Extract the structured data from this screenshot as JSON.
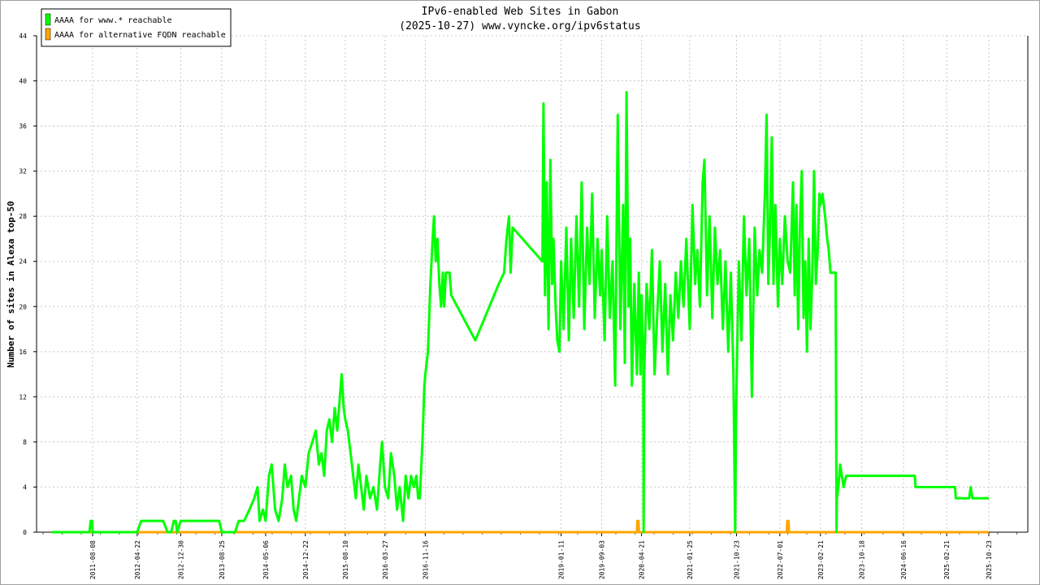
{
  "chart_data": {
    "type": "line",
    "title": "IPv6-enabled Web Sites in Gabon",
    "subtitle": "(2025-10-27) www.vyncke.org/ipv6status",
    "ylabel": "Number of sites in Alexa top-50",
    "xlabel": "",
    "ylim": [
      0,
      44
    ],
    "yticks": [
      0,
      4,
      8,
      12,
      16,
      20,
      24,
      28,
      32,
      36,
      40,
      44
    ],
    "xticks": [
      "2011-08-08",
      "2012-04-22",
      "2012-12-30",
      "2013-08-25",
      "2014-05-06",
      "2014-12-22",
      "2015-08-10",
      "2016-03-27",
      "2016-11-16",
      "2019-01-11",
      "2019-09-03",
      "2020-04-21",
      "2021-01-25",
      "2021-10-23",
      "2022-07-01",
      "2023-02-21",
      "2023-10-18",
      "2024-06-16",
      "2025-02-21",
      "2025-10-23"
    ],
    "grid": true,
    "legend_position": "top-left",
    "series": [
      {
        "name": "AAAA for www.* reachable",
        "color": "#00ff00",
        "points": [
          [
            "2010-12-15",
            0
          ],
          [
            "2011-07-20",
            0
          ],
          [
            "2011-07-28",
            1
          ],
          [
            "2011-08-05",
            1
          ],
          [
            "2011-08-08",
            0
          ],
          [
            "2012-04-01",
            0
          ],
          [
            "2012-04-22",
            0
          ],
          [
            "2012-05-15",
            1
          ],
          [
            "2012-09-20",
            1
          ],
          [
            "2012-10-15",
            0
          ],
          [
            "2012-11-05",
            0
          ],
          [
            "2012-11-20",
            1
          ],
          [
            "2012-12-01",
            1
          ],
          [
            "2012-12-10",
            0
          ],
          [
            "2012-12-30",
            1
          ],
          [
            "2013-08-10",
            1
          ],
          [
            "2013-08-25",
            0
          ],
          [
            "2013-11-10",
            0
          ],
          [
            "2013-12-01",
            1
          ],
          [
            "2014-01-01",
            1
          ],
          [
            "2014-02-01",
            2
          ],
          [
            "2014-03-01",
            3
          ],
          [
            "2014-03-20",
            4
          ],
          [
            "2014-04-01",
            1
          ],
          [
            "2014-04-20",
            2
          ],
          [
            "2014-05-06",
            1
          ],
          [
            "2014-05-25",
            5
          ],
          [
            "2014-06-10",
            6
          ],
          [
            "2014-06-30",
            2
          ],
          [
            "2014-07-20",
            1
          ],
          [
            "2014-08-10",
            3
          ],
          [
            "2014-08-25",
            6
          ],
          [
            "2014-09-10",
            4
          ],
          [
            "2014-09-30",
            5
          ],
          [
            "2014-10-15",
            2
          ],
          [
            "2014-10-30",
            1
          ],
          [
            "2014-11-15",
            3
          ],
          [
            "2014-12-01",
            5
          ],
          [
            "2014-12-22",
            4
          ],
          [
            "2015-01-10",
            7
          ],
          [
            "2015-02-01",
            8
          ],
          [
            "2015-02-20",
            9
          ],
          [
            "2015-03-10",
            6
          ],
          [
            "2015-03-25",
            7
          ],
          [
            "2015-04-10",
            5
          ],
          [
            "2015-04-25",
            9
          ],
          [
            "2015-05-10",
            10
          ],
          [
            "2015-05-25",
            8
          ],
          [
            "2015-06-10",
            11
          ],
          [
            "2015-06-25",
            9
          ],
          [
            "2015-07-10",
            12
          ],
          [
            "2015-07-20",
            14
          ],
          [
            "2015-08-01",
            11
          ],
          [
            "2015-08-10",
            10
          ],
          [
            "2015-08-25",
            9
          ],
          [
            "2015-09-10",
            7
          ],
          [
            "2015-09-25",
            5
          ],
          [
            "2015-10-10",
            3
          ],
          [
            "2015-10-25",
            6
          ],
          [
            "2015-11-10",
            4
          ],
          [
            "2015-11-25",
            2
          ],
          [
            "2015-12-10",
            5
          ],
          [
            "2016-01-01",
            3
          ],
          [
            "2016-01-20",
            4
          ],
          [
            "2016-02-10",
            2
          ],
          [
            "2016-02-28",
            6
          ],
          [
            "2016-03-10",
            8
          ],
          [
            "2016-03-27",
            4
          ],
          [
            "2016-04-15",
            3
          ],
          [
            "2016-05-01",
            7
          ],
          [
            "2016-05-20",
            5
          ],
          [
            "2016-06-05",
            2
          ],
          [
            "2016-06-20",
            4
          ],
          [
            "2016-07-10",
            1
          ],
          [
            "2016-07-25",
            5
          ],
          [
            "2016-08-10",
            3
          ],
          [
            "2016-08-25",
            5
          ],
          [
            "2016-09-10",
            4
          ],
          [
            "2016-09-25",
            5
          ],
          [
            "2016-10-05",
            3
          ],
          [
            "2016-10-15",
            3
          ],
          [
            "2016-10-30",
            8
          ],
          [
            "2016-11-10",
            13
          ],
          [
            "2016-11-16",
            14
          ],
          [
            "2016-12-01",
            16
          ],
          [
            "2016-12-15",
            22
          ],
          [
            "2016-12-28",
            26
          ],
          [
            "2017-01-05",
            28
          ],
          [
            "2017-01-15",
            24
          ],
          [
            "2017-01-25",
            26
          ],
          [
            "2017-02-05",
            22
          ],
          [
            "2017-02-15",
            20
          ],
          [
            "2017-02-25",
            23
          ],
          [
            "2017-03-05",
            20
          ],
          [
            "2017-03-15",
            23
          ],
          [
            "2017-04-05",
            23
          ],
          [
            "2017-04-15",
            21
          ],
          [
            "2017-09-01",
            17
          ],
          [
            "2018-01-15",
            22
          ],
          [
            "2018-02-15",
            23
          ],
          [
            "2018-03-01",
            26
          ],
          [
            "2018-03-15",
            28
          ],
          [
            "2018-03-25",
            23
          ],
          [
            "2018-04-05",
            27
          ],
          [
            "2018-09-25",
            24
          ],
          [
            "2018-10-01",
            38
          ],
          [
            "2018-10-10",
            21
          ],
          [
            "2018-10-20",
            31
          ],
          [
            "2018-10-30",
            18
          ],
          [
            "2018-11-10",
            33
          ],
          [
            "2018-11-20",
            22
          ],
          [
            "2018-11-28",
            26
          ],
          [
            "2018-12-10",
            20
          ],
          [
            "2018-12-20",
            17
          ],
          [
            "2019-01-01",
            16
          ],
          [
            "2019-01-11",
            24
          ],
          [
            "2019-01-25",
            18
          ],
          [
            "2019-02-10",
            27
          ],
          [
            "2019-02-25",
            17
          ],
          [
            "2019-03-10",
            26
          ],
          [
            "2019-03-25",
            19
          ],
          [
            "2019-04-10",
            28
          ],
          [
            "2019-04-25",
            20
          ],
          [
            "2019-05-10",
            31
          ],
          [
            "2019-05-25",
            18
          ],
          [
            "2019-06-10",
            27
          ],
          [
            "2019-06-25",
            22
          ],
          [
            "2019-07-10",
            30
          ],
          [
            "2019-07-25",
            19
          ],
          [
            "2019-08-10",
            26
          ],
          [
            "2019-08-25",
            21
          ],
          [
            "2019-09-03",
            25
          ],
          [
            "2019-09-20",
            17
          ],
          [
            "2019-10-05",
            28
          ],
          [
            "2019-10-20",
            19
          ],
          [
            "2019-11-05",
            24
          ],
          [
            "2019-11-20",
            13
          ],
          [
            "2019-12-05",
            37
          ],
          [
            "2019-12-20",
            18
          ],
          [
            "2020-01-05",
            29
          ],
          [
            "2020-01-15",
            15
          ],
          [
            "2020-01-25",
            39
          ],
          [
            "2020-02-05",
            20
          ],
          [
            "2020-02-15",
            26
          ],
          [
            "2020-02-25",
            13
          ],
          [
            "2020-03-10",
            22
          ],
          [
            "2020-03-25",
            14
          ],
          [
            "2020-04-05",
            23
          ],
          [
            "2020-04-15",
            14
          ],
          [
            "2020-04-21",
            21
          ],
          [
            "2020-05-01",
            15
          ],
          [
            "2020-05-03",
            0
          ],
          [
            "2020-05-06",
            14
          ],
          [
            "2020-05-20",
            22
          ],
          [
            "2020-06-05",
            18
          ],
          [
            "2020-06-20",
            25
          ],
          [
            "2020-07-05",
            14
          ],
          [
            "2020-07-20",
            19
          ],
          [
            "2020-08-05",
            24
          ],
          [
            "2020-08-20",
            16
          ],
          [
            "2020-09-05",
            22
          ],
          [
            "2020-09-20",
            14
          ],
          [
            "2020-10-05",
            21
          ],
          [
            "2020-10-20",
            17
          ],
          [
            "2020-11-05",
            23
          ],
          [
            "2020-11-20",
            19
          ],
          [
            "2020-12-05",
            24
          ],
          [
            "2020-12-20",
            20
          ],
          [
            "2021-01-05",
            26
          ],
          [
            "2021-01-25",
            18
          ],
          [
            "2021-02-10",
            29
          ],
          [
            "2021-02-25",
            22
          ],
          [
            "2021-03-10",
            25
          ],
          [
            "2021-03-25",
            20
          ],
          [
            "2021-04-10",
            31
          ],
          [
            "2021-04-20",
            33
          ],
          [
            "2021-05-05",
            21
          ],
          [
            "2021-05-20",
            28
          ],
          [
            "2021-06-05",
            19
          ],
          [
            "2021-06-20",
            27
          ],
          [
            "2021-07-05",
            22
          ],
          [
            "2021-07-20",
            25
          ],
          [
            "2021-08-05",
            18
          ],
          [
            "2021-08-20",
            24
          ],
          [
            "2021-09-05",
            16
          ],
          [
            "2021-09-20",
            23
          ],
          [
            "2021-10-05",
            14
          ],
          [
            "2021-10-15",
            0
          ],
          [
            "2021-10-20",
            10
          ],
          [
            "2021-10-23",
            13
          ],
          [
            "2021-11-05",
            24
          ],
          [
            "2021-11-20",
            17
          ],
          [
            "2021-12-05",
            28
          ],
          [
            "2021-12-20",
            21
          ],
          [
            "2022-01-05",
            26
          ],
          [
            "2022-01-20",
            12
          ],
          [
            "2022-02-05",
            27
          ],
          [
            "2022-02-20",
            21
          ],
          [
            "2022-03-05",
            25
          ],
          [
            "2022-03-20",
            23
          ],
          [
            "2022-04-05",
            30
          ],
          [
            "2022-04-15",
            37
          ],
          [
            "2022-04-25",
            22
          ],
          [
            "2022-05-05",
            27
          ],
          [
            "2022-05-15",
            35
          ],
          [
            "2022-05-25",
            22
          ],
          [
            "2022-06-05",
            29
          ],
          [
            "2022-06-20",
            20
          ],
          [
            "2022-07-01",
            26
          ],
          [
            "2022-07-15",
            22
          ],
          [
            "2022-07-30",
            28
          ],
          [
            "2022-08-15",
            24
          ],
          [
            "2022-08-30",
            23
          ],
          [
            "2022-09-15",
            31
          ],
          [
            "2022-09-25",
            21
          ],
          [
            "2022-10-05",
            29
          ],
          [
            "2022-10-15",
            18
          ],
          [
            "2022-10-25",
            27
          ],
          [
            "2022-11-05",
            32
          ],
          [
            "2022-11-15",
            19
          ],
          [
            "2022-11-25",
            24
          ],
          [
            "2022-12-05",
            16
          ],
          [
            "2022-12-15",
            26
          ],
          [
            "2022-12-25",
            18
          ],
          [
            "2023-01-05",
            23
          ],
          [
            "2023-01-15",
            32
          ],
          [
            "2023-01-25",
            22
          ],
          [
            "2023-02-05",
            25
          ],
          [
            "2023-02-15",
            30
          ],
          [
            "2023-02-21",
            29
          ],
          [
            "2023-03-05",
            30
          ],
          [
            "2023-03-20",
            28
          ],
          [
            "2023-04-01",
            26
          ],
          [
            "2023-04-10",
            25
          ],
          [
            "2023-04-20",
            23
          ],
          [
            "2023-05-20",
            23
          ],
          [
            "2023-05-25",
            0
          ],
          [
            "2023-05-27",
            3
          ],
          [
            "2023-06-05",
            4
          ],
          [
            "2023-06-15",
            6
          ],
          [
            "2023-06-25",
            5
          ],
          [
            "2023-07-05",
            4
          ],
          [
            "2023-07-20",
            5
          ],
          [
            "2024-08-20",
            5
          ],
          [
            "2024-08-25",
            4
          ],
          [
            "2025-04-10",
            4
          ],
          [
            "2025-04-15",
            3
          ],
          [
            "2025-07-01",
            3
          ],
          [
            "2025-07-10",
            4
          ],
          [
            "2025-07-20",
            3
          ],
          [
            "2025-10-23",
            3
          ]
        ]
      },
      {
        "name": "AAAA for alternative FQDN reachable",
        "color": "#ffa500",
        "points": [
          [
            "2010-12-15",
            0
          ],
          [
            "2020-03-25",
            0
          ],
          [
            "2020-03-28",
            1
          ],
          [
            "2020-04-03",
            1
          ],
          [
            "2020-04-06",
            0
          ],
          [
            "2022-08-10",
            0
          ],
          [
            "2022-08-13",
            1
          ],
          [
            "2022-08-20",
            1
          ],
          [
            "2022-08-23",
            0
          ],
          [
            "2025-10-23",
            0
          ]
        ]
      }
    ]
  }
}
